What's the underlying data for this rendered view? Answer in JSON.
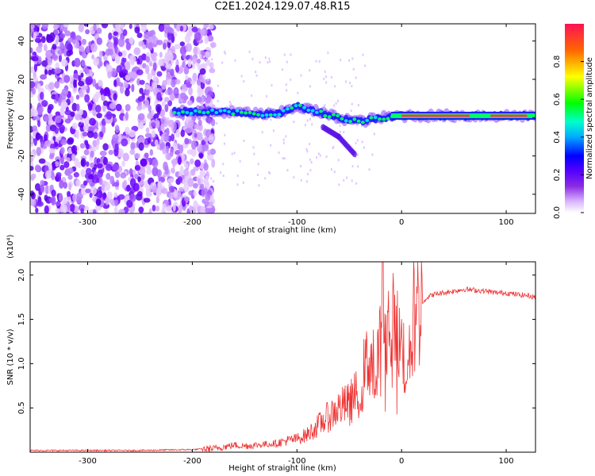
{
  "title": "C2E1.2024.129.07.48.R15",
  "colors": {
    "snr_line": "#ee3333",
    "colorbar": [
      "#ffffff",
      "#d9b3ff",
      "#8a2be2",
      "#5500ff",
      "#0000ff",
      "#00ccff",
      "#00ff66",
      "#ffff00",
      "#ff6600",
      "#ff1155"
    ]
  },
  "chart_data": [
    {
      "type": "heatmap",
      "title": "C2E1.2024.129.07.48.R15",
      "xlabel": "Height of straight line (km)",
      "ylabel": "Frequency (Hz)",
      "xlim": [
        -355,
        128
      ],
      "ylim": [
        -50,
        49
      ],
      "xticks": [
        -300,
        -200,
        -100,
        0,
        100
      ],
      "yticks": [
        -40,
        -20,
        0,
        20,
        40
      ],
      "colorbar": {
        "label": "Normalized spectral amplitude",
        "range": [
          0.0,
          1.0
        ],
        "ticks": [
          0.0,
          0.2,
          0.4,
          0.6,
          0.8
        ]
      },
      "features": {
        "broadband_noise_x_range": [
          -355,
          -190
        ],
        "main_ridge": [
          {
            "x": -217,
            "y": 3
          },
          {
            "x": -180,
            "y": 3
          },
          {
            "x": -150,
            "y": 2.5
          },
          {
            "x": -120,
            "y": 1.5
          },
          {
            "x": -100,
            "y": 6
          },
          {
            "x": -80,
            "y": 3
          },
          {
            "x": -60,
            "y": 0
          },
          {
            "x": -40,
            "y": -2
          },
          {
            "x": -20,
            "y": 0
          },
          {
            "x": 0,
            "y": 1
          },
          {
            "x": 50,
            "y": 1
          },
          {
            "x": 128,
            "y": 1
          }
        ],
        "lower_branch": [
          {
            "x": -75,
            "y": -5
          },
          {
            "x": -60,
            "y": -10
          },
          {
            "x": -45,
            "y": -19
          }
        ]
      }
    },
    {
      "type": "line",
      "title": "",
      "xlabel": "Height of straight line (km)",
      "ylabel": "SNR (10 * v/v)",
      "y_multiplier": "(x10⁴)",
      "xlim": [
        -355,
        128
      ],
      "ylim": [
        0,
        2.15
      ],
      "xticks": [
        -300,
        -200,
        -100,
        0,
        100
      ],
      "yticks": [
        0.5,
        1.0,
        1.5,
        2.0
      ],
      "series": [
        {
          "x": [
            -355,
            -300,
            -250,
            -200,
            -180,
            -170,
            -160,
            -150,
            -140,
            -130,
            -120,
            -110,
            -100,
            -90,
            -80,
            -70,
            -60,
            -50,
            -40,
            -35,
            -30,
            -25,
            -20,
            -18,
            -15,
            -12,
            -10,
            -5,
            0,
            5,
            10,
            15,
            20,
            25,
            30,
            40,
            50,
            60,
            70,
            80,
            90,
            100,
            110,
            120,
            128
          ],
          "values": [
            0.02,
            0.02,
            0.02,
            0.03,
            0.04,
            0.06,
            0.08,
            0.07,
            0.08,
            0.09,
            0.1,
            0.13,
            0.15,
            0.2,
            0.3,
            0.4,
            0.5,
            0.55,
            0.7,
            0.95,
            1.1,
            0.9,
            1.25,
            2.15,
            1.3,
            1.45,
            1.5,
            1.3,
            1.2,
            1.0,
            1.5,
            1.6,
            1.7,
            1.75,
            1.78,
            1.8,
            1.82,
            1.84,
            1.83,
            1.82,
            1.8,
            1.8,
            1.78,
            1.77,
            1.75
          ]
        }
      ]
    }
  ]
}
